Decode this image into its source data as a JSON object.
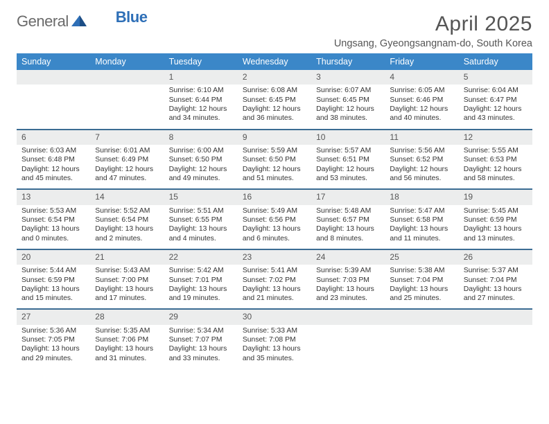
{
  "logo": {
    "text1": "General",
    "text2": "Blue"
  },
  "title": "April 2025",
  "subtitle": "Ungsang, Gyeongsangnam-do, South Korea",
  "colors": {
    "header_bg": "#3b87c8",
    "header_text": "#ffffff",
    "rule": "#3b6c93",
    "daynum_bg": "#eceded",
    "logo_gray": "#6a6a6a",
    "logo_blue": "#2e6fb7",
    "text": "#333333"
  },
  "weekdays": [
    "Sunday",
    "Monday",
    "Tuesday",
    "Wednesday",
    "Thursday",
    "Friday",
    "Saturday"
  ],
  "weeks": [
    [
      null,
      null,
      {
        "n": "1",
        "sunrise": "6:10 AM",
        "sunset": "6:44 PM",
        "daylight": "12 hours and 34 minutes."
      },
      {
        "n": "2",
        "sunrise": "6:08 AM",
        "sunset": "6:45 PM",
        "daylight": "12 hours and 36 minutes."
      },
      {
        "n": "3",
        "sunrise": "6:07 AM",
        "sunset": "6:45 PM",
        "daylight": "12 hours and 38 minutes."
      },
      {
        "n": "4",
        "sunrise": "6:05 AM",
        "sunset": "6:46 PM",
        "daylight": "12 hours and 40 minutes."
      },
      {
        "n": "5",
        "sunrise": "6:04 AM",
        "sunset": "6:47 PM",
        "daylight": "12 hours and 43 minutes."
      }
    ],
    [
      {
        "n": "6",
        "sunrise": "6:03 AM",
        "sunset": "6:48 PM",
        "daylight": "12 hours and 45 minutes."
      },
      {
        "n": "7",
        "sunrise": "6:01 AM",
        "sunset": "6:49 PM",
        "daylight": "12 hours and 47 minutes."
      },
      {
        "n": "8",
        "sunrise": "6:00 AM",
        "sunset": "6:50 PM",
        "daylight": "12 hours and 49 minutes."
      },
      {
        "n": "9",
        "sunrise": "5:59 AM",
        "sunset": "6:50 PM",
        "daylight": "12 hours and 51 minutes."
      },
      {
        "n": "10",
        "sunrise": "5:57 AM",
        "sunset": "6:51 PM",
        "daylight": "12 hours and 53 minutes."
      },
      {
        "n": "11",
        "sunrise": "5:56 AM",
        "sunset": "6:52 PM",
        "daylight": "12 hours and 56 minutes."
      },
      {
        "n": "12",
        "sunrise": "5:55 AM",
        "sunset": "6:53 PM",
        "daylight": "12 hours and 58 minutes."
      }
    ],
    [
      {
        "n": "13",
        "sunrise": "5:53 AM",
        "sunset": "6:54 PM",
        "daylight": "13 hours and 0 minutes."
      },
      {
        "n": "14",
        "sunrise": "5:52 AM",
        "sunset": "6:54 PM",
        "daylight": "13 hours and 2 minutes."
      },
      {
        "n": "15",
        "sunrise": "5:51 AM",
        "sunset": "6:55 PM",
        "daylight": "13 hours and 4 minutes."
      },
      {
        "n": "16",
        "sunrise": "5:49 AM",
        "sunset": "6:56 PM",
        "daylight": "13 hours and 6 minutes."
      },
      {
        "n": "17",
        "sunrise": "5:48 AM",
        "sunset": "6:57 PM",
        "daylight": "13 hours and 8 minutes."
      },
      {
        "n": "18",
        "sunrise": "5:47 AM",
        "sunset": "6:58 PM",
        "daylight": "13 hours and 11 minutes."
      },
      {
        "n": "19",
        "sunrise": "5:45 AM",
        "sunset": "6:59 PM",
        "daylight": "13 hours and 13 minutes."
      }
    ],
    [
      {
        "n": "20",
        "sunrise": "5:44 AM",
        "sunset": "6:59 PM",
        "daylight": "13 hours and 15 minutes."
      },
      {
        "n": "21",
        "sunrise": "5:43 AM",
        "sunset": "7:00 PM",
        "daylight": "13 hours and 17 minutes."
      },
      {
        "n": "22",
        "sunrise": "5:42 AM",
        "sunset": "7:01 PM",
        "daylight": "13 hours and 19 minutes."
      },
      {
        "n": "23",
        "sunrise": "5:41 AM",
        "sunset": "7:02 PM",
        "daylight": "13 hours and 21 minutes."
      },
      {
        "n": "24",
        "sunrise": "5:39 AM",
        "sunset": "7:03 PM",
        "daylight": "13 hours and 23 minutes."
      },
      {
        "n": "25",
        "sunrise": "5:38 AM",
        "sunset": "7:04 PM",
        "daylight": "13 hours and 25 minutes."
      },
      {
        "n": "26",
        "sunrise": "5:37 AM",
        "sunset": "7:04 PM",
        "daylight": "13 hours and 27 minutes."
      }
    ],
    [
      {
        "n": "27",
        "sunrise": "5:36 AM",
        "sunset": "7:05 PM",
        "daylight": "13 hours and 29 minutes."
      },
      {
        "n": "28",
        "sunrise": "5:35 AM",
        "sunset": "7:06 PM",
        "daylight": "13 hours and 31 minutes."
      },
      {
        "n": "29",
        "sunrise": "5:34 AM",
        "sunset": "7:07 PM",
        "daylight": "13 hours and 33 minutes."
      },
      {
        "n": "30",
        "sunrise": "5:33 AM",
        "sunset": "7:08 PM",
        "daylight": "13 hours and 35 minutes."
      },
      null,
      null,
      null
    ]
  ],
  "labels": {
    "sunrise": "Sunrise: ",
    "sunset": "Sunset: ",
    "daylight": "Daylight: "
  }
}
